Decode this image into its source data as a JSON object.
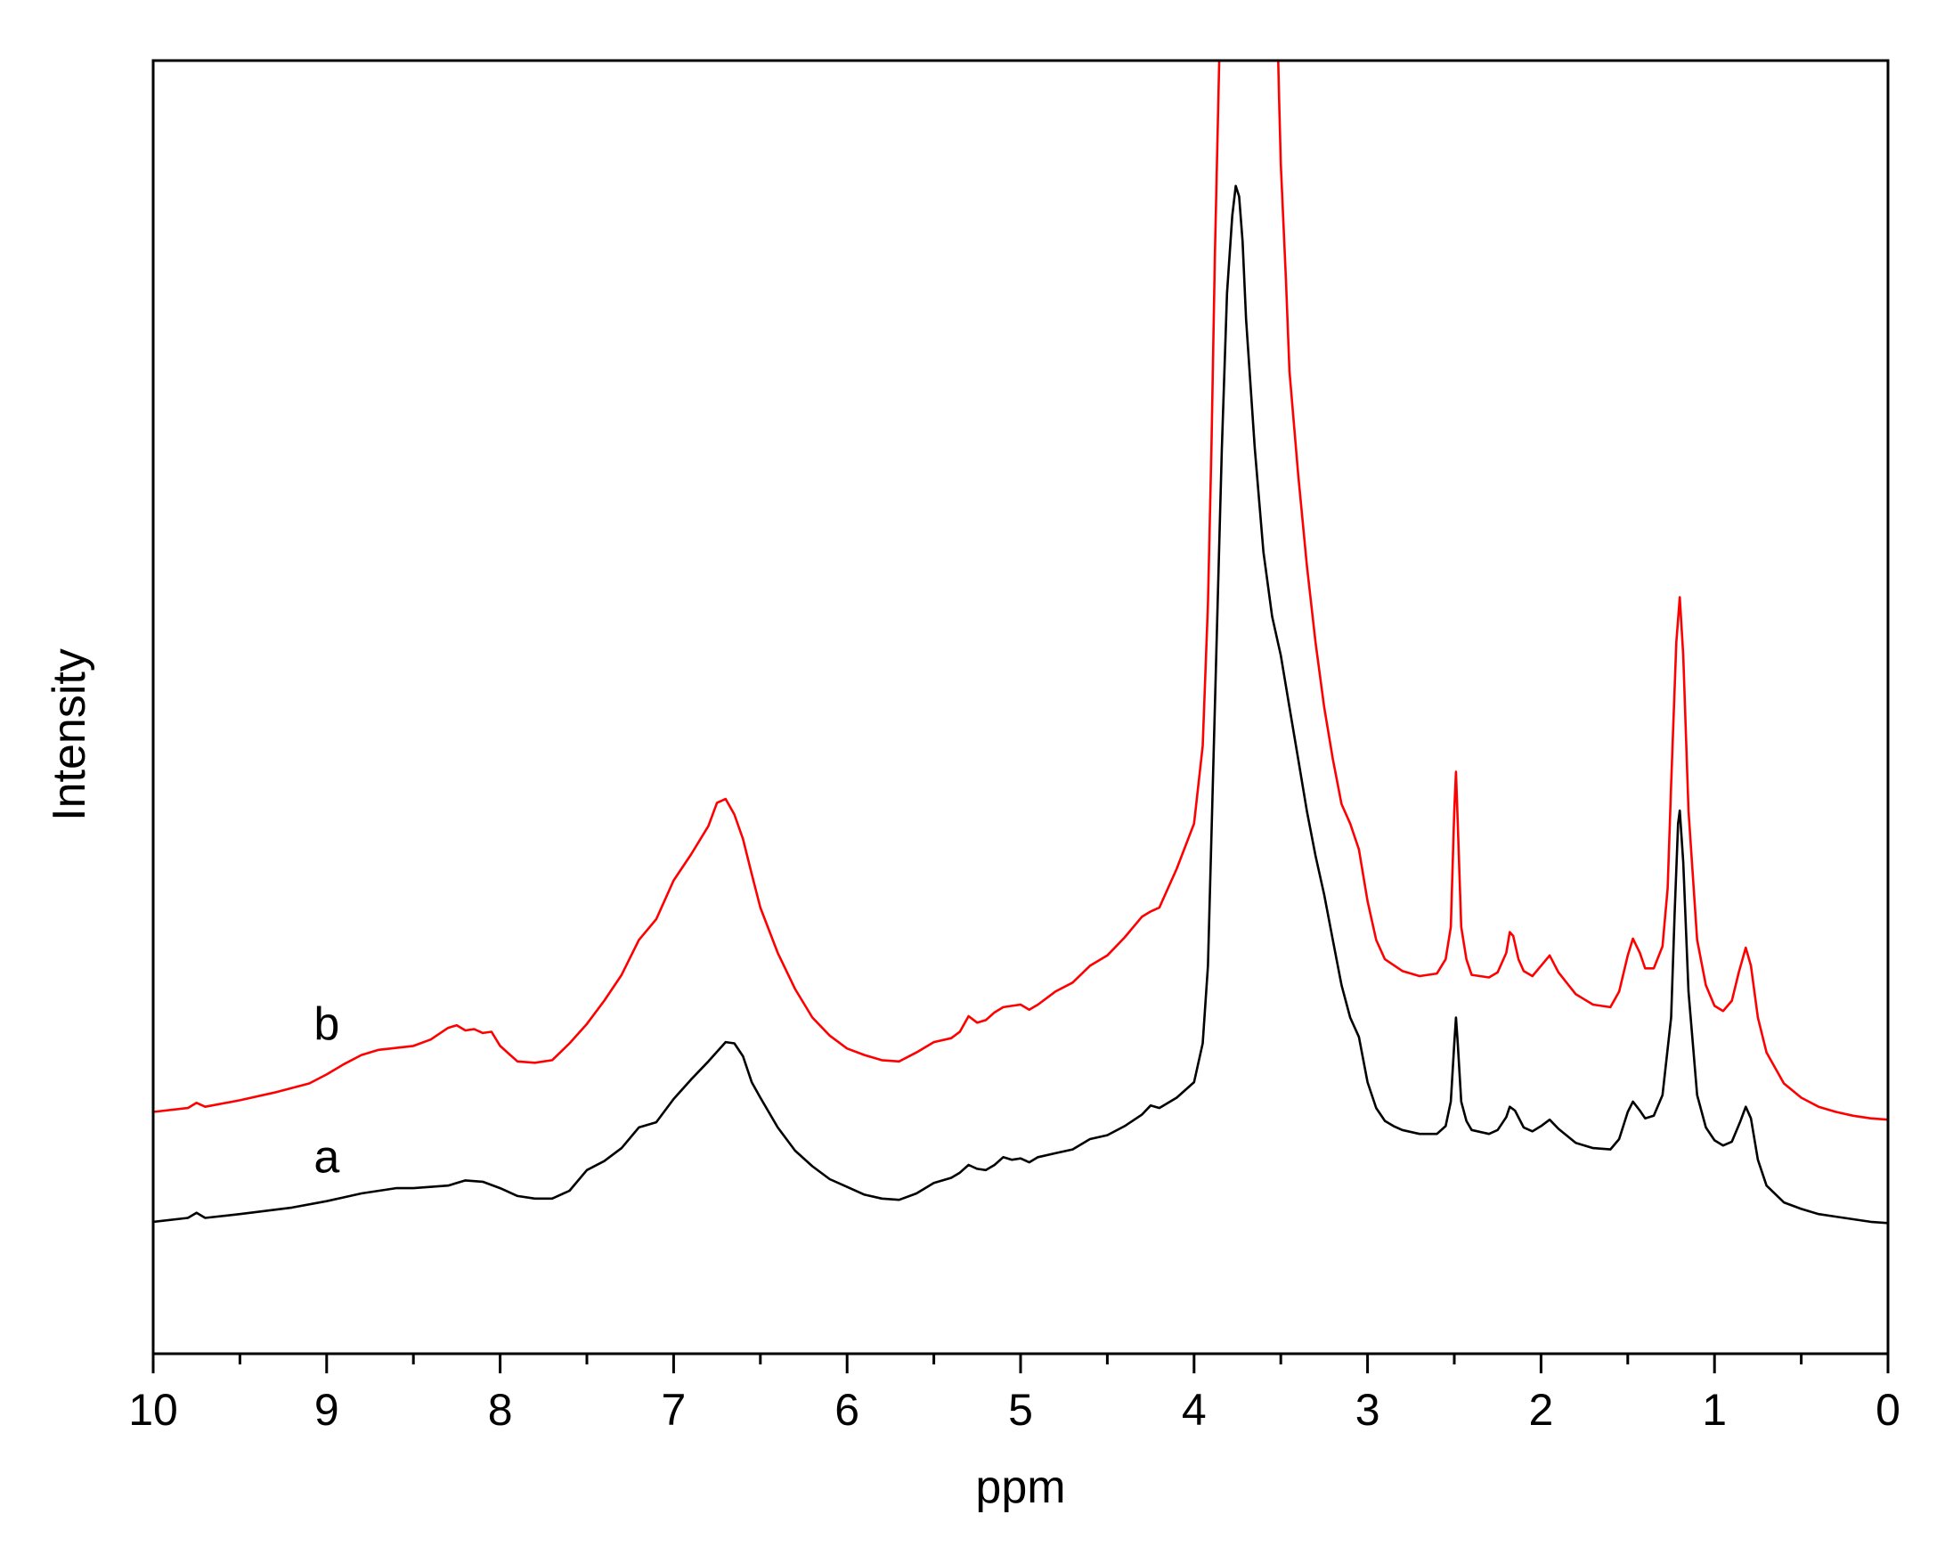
{
  "chart_data": {
    "type": "line",
    "title": "",
    "xlabel": "ppm",
    "ylabel": "Intensity",
    "xlim": [
      10,
      0
    ],
    "x_reversed": true,
    "ylim": [
      0,
      100
    ],
    "y_ticks_shown": false,
    "grid": false,
    "legend": "none",
    "x_ticks": [
      10,
      9,
      8,
      7,
      6,
      5,
      4,
      3,
      2,
      1,
      0
    ],
    "x_tick_labels": [
      "10",
      "9",
      "8",
      "7",
      "6",
      "5",
      "4",
      "3",
      "2",
      "1",
      "0"
    ],
    "series": [
      {
        "name": "a",
        "color": "#000000",
        "label_pos": [
          9.0,
          14.0
        ],
        "points": [
          [
            10.0,
            10.2
          ],
          [
            9.8,
            10.5
          ],
          [
            9.75,
            10.9
          ],
          [
            9.7,
            10.5
          ],
          [
            9.5,
            10.8
          ],
          [
            9.2,
            11.3
          ],
          [
            9.0,
            11.8
          ],
          [
            8.8,
            12.4
          ],
          [
            8.6,
            12.8
          ],
          [
            8.5,
            12.8
          ],
          [
            8.3,
            13.0
          ],
          [
            8.2,
            13.4
          ],
          [
            8.1,
            13.3
          ],
          [
            8.0,
            12.8
          ],
          [
            7.9,
            12.2
          ],
          [
            7.8,
            12.0
          ],
          [
            7.7,
            12.0
          ],
          [
            7.6,
            12.6
          ],
          [
            7.5,
            14.2
          ],
          [
            7.4,
            14.9
          ],
          [
            7.3,
            15.9
          ],
          [
            7.2,
            17.5
          ],
          [
            7.1,
            17.9
          ],
          [
            7.0,
            19.7
          ],
          [
            6.9,
            21.2
          ],
          [
            6.8,
            22.6
          ],
          [
            6.7,
            24.1
          ],
          [
            6.65,
            24.0
          ],
          [
            6.6,
            23.0
          ],
          [
            6.55,
            21.0
          ],
          [
            6.5,
            19.8
          ],
          [
            6.4,
            17.5
          ],
          [
            6.3,
            15.7
          ],
          [
            6.2,
            14.5
          ],
          [
            6.1,
            13.5
          ],
          [
            6.0,
            12.9
          ],
          [
            5.9,
            12.3
          ],
          [
            5.8,
            12.0
          ],
          [
            5.7,
            11.9
          ],
          [
            5.6,
            12.4
          ],
          [
            5.5,
            13.2
          ],
          [
            5.4,
            13.6
          ],
          [
            5.35,
            14.0
          ],
          [
            5.3,
            14.6
          ],
          [
            5.25,
            14.3
          ],
          [
            5.2,
            14.2
          ],
          [
            5.15,
            14.6
          ],
          [
            5.1,
            15.2
          ],
          [
            5.05,
            15.0
          ],
          [
            5.0,
            15.1
          ],
          [
            4.95,
            14.8
          ],
          [
            4.9,
            15.2
          ],
          [
            4.8,
            15.5
          ],
          [
            4.7,
            15.8
          ],
          [
            4.6,
            16.6
          ],
          [
            4.5,
            16.9
          ],
          [
            4.4,
            17.6
          ],
          [
            4.3,
            18.5
          ],
          [
            4.25,
            19.2
          ],
          [
            4.2,
            19.0
          ],
          [
            4.1,
            19.8
          ],
          [
            4.0,
            21.0
          ],
          [
            3.95,
            24.0
          ],
          [
            3.92,
            30.0
          ],
          [
            3.9,
            40.0
          ],
          [
            3.87,
            55.0
          ],
          [
            3.84,
            70.0
          ],
          [
            3.81,
            82.0
          ],
          [
            3.78,
            88.0
          ],
          [
            3.76,
            90.3
          ],
          [
            3.74,
            89.5
          ],
          [
            3.72,
            86.0
          ],
          [
            3.7,
            80.0
          ],
          [
            3.65,
            70.0
          ],
          [
            3.6,
            62.0
          ],
          [
            3.55,
            57.0
          ],
          [
            3.5,
            54.0
          ],
          [
            3.45,
            50.0
          ],
          [
            3.4,
            46.0
          ],
          [
            3.35,
            42.0
          ],
          [
            3.3,
            38.5
          ],
          [
            3.25,
            35.5
          ],
          [
            3.2,
            32.0
          ],
          [
            3.15,
            28.5
          ],
          [
            3.1,
            26.0
          ],
          [
            3.05,
            24.5
          ],
          [
            3.0,
            21.0
          ],
          [
            2.95,
            19.0
          ],
          [
            2.9,
            18.0
          ],
          [
            2.85,
            17.6
          ],
          [
            2.8,
            17.3
          ],
          [
            2.7,
            17.0
          ],
          [
            2.6,
            17.0
          ],
          [
            2.55,
            17.6
          ],
          [
            2.52,
            19.5
          ],
          [
            2.5,
            24.0
          ],
          [
            2.49,
            26.0
          ],
          [
            2.48,
            24.0
          ],
          [
            2.46,
            19.5
          ],
          [
            2.43,
            18.0
          ],
          [
            2.4,
            17.3
          ],
          [
            2.3,
            17.0
          ],
          [
            2.25,
            17.3
          ],
          [
            2.2,
            18.3
          ],
          [
            2.18,
            19.1
          ],
          [
            2.15,
            18.8
          ],
          [
            2.1,
            17.5
          ],
          [
            2.05,
            17.2
          ],
          [
            2.0,
            17.6
          ],
          [
            1.95,
            18.1
          ],
          [
            1.9,
            17.4
          ],
          [
            1.8,
            16.3
          ],
          [
            1.7,
            15.9
          ],
          [
            1.6,
            15.8
          ],
          [
            1.55,
            16.6
          ],
          [
            1.5,
            18.7
          ],
          [
            1.47,
            19.5
          ],
          [
            1.43,
            18.8
          ],
          [
            1.4,
            18.2
          ],
          [
            1.35,
            18.4
          ],
          [
            1.3,
            20.0
          ],
          [
            1.25,
            26.0
          ],
          [
            1.23,
            34.0
          ],
          [
            1.21,
            41.0
          ],
          [
            1.2,
            42.0
          ],
          [
            1.18,
            38.0
          ],
          [
            1.15,
            28.0
          ],
          [
            1.1,
            20.0
          ],
          [
            1.05,
            17.5
          ],
          [
            1.0,
            16.5
          ],
          [
            0.95,
            16.1
          ],
          [
            0.9,
            16.4
          ],
          [
            0.85,
            18.0
          ],
          [
            0.82,
            19.1
          ],
          [
            0.79,
            18.2
          ],
          [
            0.75,
            15.0
          ],
          [
            0.7,
            13.0
          ],
          [
            0.6,
            11.7
          ],
          [
            0.5,
            11.2
          ],
          [
            0.4,
            10.8
          ],
          [
            0.3,
            10.6
          ],
          [
            0.2,
            10.4
          ],
          [
            0.1,
            10.2
          ],
          [
            0.0,
            10.1
          ]
        ]
      },
      {
        "name": "b",
        "color": "#ff0000",
        "label_pos": [
          9.0,
          24.3
        ],
        "points": [
          [
            10.0,
            18.7
          ],
          [
            9.8,
            19.0
          ],
          [
            9.75,
            19.4
          ],
          [
            9.7,
            19.1
          ],
          [
            9.5,
            19.6
          ],
          [
            9.3,
            20.2
          ],
          [
            9.1,
            20.9
          ],
          [
            9.0,
            21.6
          ],
          [
            8.9,
            22.4
          ],
          [
            8.8,
            23.1
          ],
          [
            8.7,
            23.5
          ],
          [
            8.5,
            23.8
          ],
          [
            8.4,
            24.3
          ],
          [
            8.3,
            25.2
          ],
          [
            8.25,
            25.4
          ],
          [
            8.2,
            25.0
          ],
          [
            8.15,
            25.1
          ],
          [
            8.1,
            24.8
          ],
          [
            8.05,
            24.9
          ],
          [
            8.0,
            23.8
          ],
          [
            7.95,
            23.2
          ],
          [
            7.9,
            22.6
          ],
          [
            7.8,
            22.5
          ],
          [
            7.7,
            22.7
          ],
          [
            7.6,
            24.0
          ],
          [
            7.5,
            25.5
          ],
          [
            7.4,
            27.3
          ],
          [
            7.3,
            29.3
          ],
          [
            7.2,
            32.0
          ],
          [
            7.1,
            33.6
          ],
          [
            7.0,
            36.6
          ],
          [
            6.9,
            38.6
          ],
          [
            6.8,
            40.8
          ],
          [
            6.75,
            42.6
          ],
          [
            6.7,
            42.9
          ],
          [
            6.65,
            41.7
          ],
          [
            6.6,
            39.8
          ],
          [
            6.55,
            37.1
          ],
          [
            6.5,
            34.5
          ],
          [
            6.4,
            31.0
          ],
          [
            6.3,
            28.2
          ],
          [
            6.2,
            26.0
          ],
          [
            6.1,
            24.6
          ],
          [
            6.0,
            23.6
          ],
          [
            5.9,
            23.1
          ],
          [
            5.8,
            22.7
          ],
          [
            5.7,
            22.6
          ],
          [
            5.6,
            23.3
          ],
          [
            5.5,
            24.1
          ],
          [
            5.4,
            24.4
          ],
          [
            5.35,
            24.9
          ],
          [
            5.3,
            26.1
          ],
          [
            5.25,
            25.6
          ],
          [
            5.2,
            25.8
          ],
          [
            5.15,
            26.4
          ],
          [
            5.1,
            26.8
          ],
          [
            5.05,
            26.9
          ],
          [
            5.0,
            27.0
          ],
          [
            4.95,
            26.6
          ],
          [
            4.9,
            27.0
          ],
          [
            4.8,
            28.0
          ],
          [
            4.7,
            28.7
          ],
          [
            4.6,
            30.0
          ],
          [
            4.5,
            30.8
          ],
          [
            4.4,
            32.2
          ],
          [
            4.3,
            33.8
          ],
          [
            4.25,
            34.2
          ],
          [
            4.2,
            34.5
          ],
          [
            4.1,
            37.5
          ],
          [
            4.0,
            41.0
          ],
          [
            3.95,
            47.0
          ],
          [
            3.92,
            58.0
          ],
          [
            3.9,
            70.0
          ],
          [
            3.88,
            85.0
          ],
          [
            3.86,
            97.0
          ],
          [
            3.85,
            103.0
          ],
          [
            3.52,
            103.0
          ],
          [
            3.51,
            97.0
          ],
          [
            3.5,
            92.0
          ],
          [
            3.47,
            83.0
          ],
          [
            3.45,
            76.0
          ],
          [
            3.4,
            68.0
          ],
          [
            3.35,
            61.0
          ],
          [
            3.3,
            55.0
          ],
          [
            3.25,
            50.0
          ],
          [
            3.2,
            46.0
          ],
          [
            3.15,
            42.5
          ],
          [
            3.1,
            41.0
          ],
          [
            3.05,
            39.0
          ],
          [
            3.0,
            35.0
          ],
          [
            2.95,
            32.0
          ],
          [
            2.9,
            30.5
          ],
          [
            2.8,
            29.6
          ],
          [
            2.7,
            29.2
          ],
          [
            2.6,
            29.4
          ],
          [
            2.55,
            30.5
          ],
          [
            2.52,
            33.0
          ],
          [
            2.5,
            42.0
          ],
          [
            2.49,
            45.0
          ],
          [
            2.48,
            41.0
          ],
          [
            2.46,
            33.0
          ],
          [
            2.43,
            30.5
          ],
          [
            2.4,
            29.3
          ],
          [
            2.3,
            29.1
          ],
          [
            2.25,
            29.5
          ],
          [
            2.2,
            31.0
          ],
          [
            2.18,
            32.6
          ],
          [
            2.16,
            32.3
          ],
          [
            2.13,
            30.5
          ],
          [
            2.1,
            29.6
          ],
          [
            2.05,
            29.2
          ],
          [
            2.0,
            30.0
          ],
          [
            1.95,
            30.8
          ],
          [
            1.9,
            29.5
          ],
          [
            1.8,
            27.8
          ],
          [
            1.7,
            27.0
          ],
          [
            1.6,
            26.8
          ],
          [
            1.55,
            28.0
          ],
          [
            1.5,
            30.8
          ],
          [
            1.47,
            32.1
          ],
          [
            1.43,
            31.0
          ],
          [
            1.4,
            29.8
          ],
          [
            1.35,
            29.8
          ],
          [
            1.3,
            31.5
          ],
          [
            1.27,
            36.0
          ],
          [
            1.25,
            44.0
          ],
          [
            1.22,
            55.0
          ],
          [
            1.2,
            58.5
          ],
          [
            1.18,
            54.0
          ],
          [
            1.15,
            42.0
          ],
          [
            1.1,
            32.0
          ],
          [
            1.05,
            28.5
          ],
          [
            1.0,
            26.9
          ],
          [
            0.95,
            26.5
          ],
          [
            0.9,
            27.3
          ],
          [
            0.86,
            29.5
          ],
          [
            0.82,
            31.4
          ],
          [
            0.79,
            30.0
          ],
          [
            0.75,
            26.0
          ],
          [
            0.7,
            23.3
          ],
          [
            0.6,
            20.9
          ],
          [
            0.5,
            19.8
          ],
          [
            0.4,
            19.1
          ],
          [
            0.3,
            18.7
          ],
          [
            0.2,
            18.4
          ],
          [
            0.1,
            18.2
          ],
          [
            0.0,
            18.1
          ]
        ]
      }
    ]
  }
}
